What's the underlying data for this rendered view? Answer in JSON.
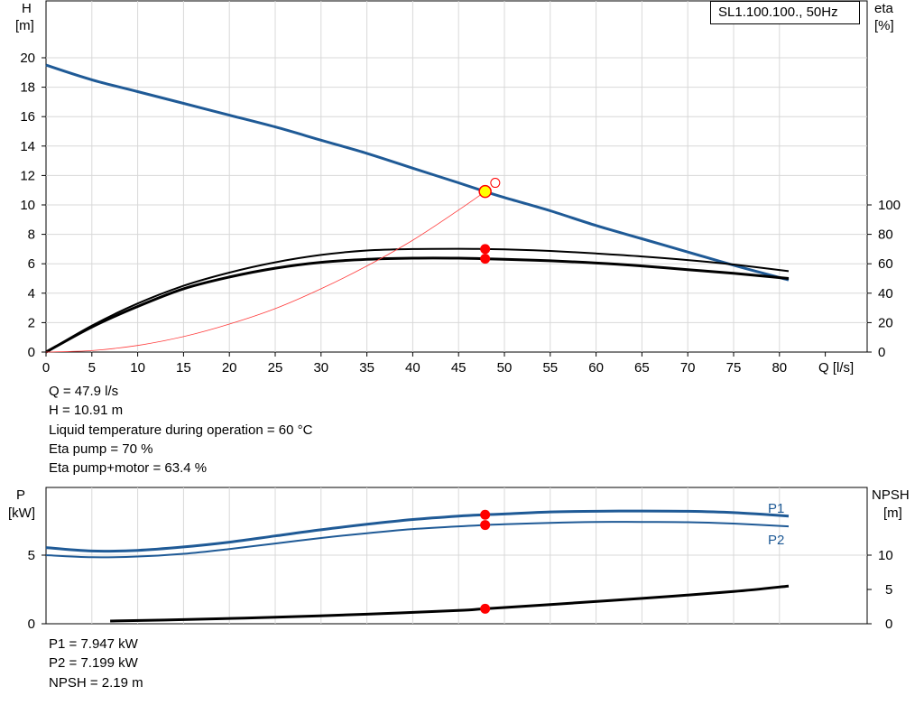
{
  "legend": {
    "title": "SL1.100.100., 50Hz"
  },
  "info": {
    "top": [
      "Q = 47.9 l/s",
      "H = 10.91 m",
      "Liquid temperature during operation = 60 °C",
      "Eta pump = 70 %",
      "Eta pump+motor = 63.4 %"
    ],
    "bottom": [
      "P1 = 7.947 kW",
      "P2 = 7.199 kW",
      "NPSH = 2.19 m"
    ]
  },
  "colors": {
    "head": "#1f5a96",
    "power": "#1f5a96",
    "efficiency": "#000000",
    "system": "#ff3b3b",
    "npsh": "#000000",
    "marker": "#ff0000",
    "duty": "#ffff00"
  },
  "chart_data": [
    {
      "type": "line",
      "name": "performance",
      "x_label": "Q [l/s]",
      "x_ticks": [
        0,
        5,
        10,
        15,
        20,
        25,
        30,
        35,
        40,
        45,
        50,
        55,
        60,
        65,
        70,
        75,
        80
      ],
      "xlim": [
        0,
        85
      ],
      "y_left_label": [
        "H",
        "[m]"
      ],
      "y_left_ticks": [
        0,
        2,
        4,
        6,
        8,
        10,
        12,
        14,
        16,
        18,
        20
      ],
      "y_left_lim": [
        0,
        24
      ],
      "y_right_label": [
        "eta",
        "[%]"
      ],
      "y_right_ticks": [
        0,
        20,
        40,
        60,
        80,
        100
      ],
      "y_right_lim": [
        0,
        240
      ],
      "series": [
        {
          "key": "head",
          "axis": "left",
          "x": [
            0,
            5,
            10,
            15,
            20,
            25,
            30,
            35,
            40,
            45,
            47.9,
            50,
            55,
            60,
            65,
            70,
            75,
            81
          ],
          "y": [
            19.5,
            18.5,
            17.7,
            16.9,
            16.1,
            15.3,
            14.4,
            13.5,
            12.5,
            11.5,
            10.91,
            10.5,
            9.6,
            8.6,
            7.7,
            6.8,
            5.9,
            4.9
          ]
        },
        {
          "key": "eta_pump",
          "axis": "right",
          "x": [
            0,
            5,
            10,
            15,
            20,
            25,
            30,
            35,
            40,
            45,
            47.9,
            50,
            55,
            60,
            65,
            70,
            75,
            81
          ],
          "y": [
            0,
            18,
            33,
            45,
            54,
            61,
            66,
            69,
            70,
            70.2,
            70,
            69.8,
            68.7,
            67,
            65,
            62.5,
            59.5,
            55
          ]
        },
        {
          "key": "eta_total",
          "axis": "right",
          "x": [
            0,
            5,
            10,
            15,
            20,
            25,
            30,
            35,
            40,
            45,
            47.9,
            50,
            55,
            60,
            65,
            70,
            75,
            81
          ],
          "y": [
            0,
            17,
            31,
            43,
            51,
            57,
            61,
            63,
            63.8,
            63.8,
            63.4,
            63,
            62,
            60.5,
            58.5,
            56,
            53.5,
            50
          ]
        },
        {
          "key": "system",
          "axis": "left",
          "x": [
            0,
            5,
            10,
            15,
            20,
            25,
            30,
            35,
            40,
            45,
            47.9
          ],
          "y": [
            0,
            0.1,
            0.45,
            1.05,
            1.9,
            2.95,
            4.3,
            5.85,
            7.6,
            9.65,
            10.91
          ]
        }
      ],
      "duty_point": {
        "x": 47.9,
        "y": 10.91
      },
      "open_point": {
        "x": 49,
        "y": 11.5
      },
      "markers": [
        {
          "x": 47.9,
          "eta": 70
        },
        {
          "x": 47.9,
          "eta": 63.4
        }
      ]
    },
    {
      "type": "line",
      "name": "power",
      "y_left_label": [
        "P",
        "[kW]"
      ],
      "y_left_ticks": [
        0,
        5
      ],
      "y_left_lim": [
        0,
        10
      ],
      "y_right_label": [
        "NPSH",
        "[m]"
      ],
      "y_right_ticks": [
        0,
        5,
        10
      ],
      "y_right_lim": [
        0,
        20
      ],
      "series": [
        {
          "key": "P1",
          "name": "P1",
          "axis": "left",
          "x": [
            0,
            5,
            10,
            15,
            20,
            25,
            30,
            35,
            40,
            45,
            47.9,
            50,
            55,
            60,
            65,
            70,
            75,
            81
          ],
          "y": [
            5.55,
            5.3,
            5.35,
            5.6,
            5.95,
            6.4,
            6.85,
            7.25,
            7.6,
            7.85,
            7.947,
            8.0,
            8.15,
            8.2,
            8.22,
            8.2,
            8.1,
            7.85
          ]
        },
        {
          "key": "P2",
          "name": "P2",
          "axis": "left",
          "x": [
            0,
            5,
            10,
            15,
            20,
            25,
            30,
            35,
            40,
            45,
            47.9,
            50,
            55,
            60,
            65,
            70,
            75,
            81
          ],
          "y": [
            5.0,
            4.85,
            4.9,
            5.1,
            5.45,
            5.85,
            6.25,
            6.6,
            6.9,
            7.1,
            7.199,
            7.25,
            7.35,
            7.42,
            7.42,
            7.4,
            7.3,
            7.1
          ]
        },
        {
          "key": "NPSH",
          "axis": "right",
          "x": [
            7,
            15,
            25,
            35,
            45,
            47.9,
            55,
            65,
            75,
            81
          ],
          "y": [
            0.4,
            0.6,
            0.95,
            1.4,
            1.95,
            2.19,
            2.8,
            3.7,
            4.7,
            5.5
          ]
        }
      ],
      "markers": [
        {
          "x": 47.9,
          "P": 7.947
        },
        {
          "x": 47.9,
          "P": 7.199
        },
        {
          "x": 47.9,
          "npsh": 2.19
        }
      ]
    }
  ]
}
